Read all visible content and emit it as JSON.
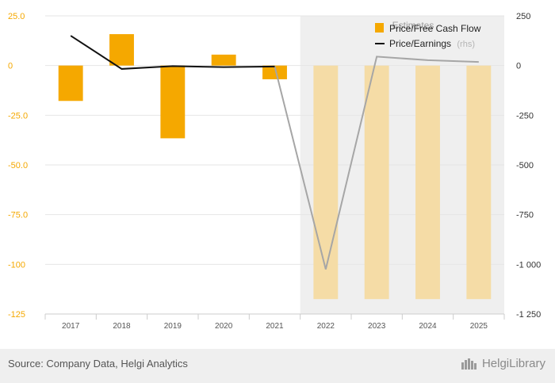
{
  "chart_data": {
    "type": "bar+line",
    "categories": [
      "2017",
      "2018",
      "2019",
      "2020",
      "2021",
      "2022",
      "2023",
      "2024",
      "2025"
    ],
    "estimates_start_index": 5,
    "estimates_label": "Estimates",
    "series": [
      {
        "name": "Price/Free Cash Flow",
        "type": "bar",
        "axis": "left",
        "color": "#f5a800",
        "estimate_color": "#f5dca6",
        "values": [
          -17.8,
          15.8,
          -36.6,
          5.5,
          -6.9,
          -117.5,
          -117.5,
          -117.5,
          -117.5
        ]
      },
      {
        "name": "Price/Earnings",
        "axis_note": "(rhs)",
        "type": "line",
        "axis": "right",
        "color": "#111111",
        "estimate_color": "#a6a6a6",
        "values": [
          150,
          -17,
          -3,
          -8,
          -5,
          -1025,
          45,
          27,
          18
        ]
      }
    ],
    "y_left": {
      "min": -125,
      "max": 25,
      "ticks": [
        25,
        0,
        -25,
        -50,
        -75,
        -100,
        -125
      ],
      "tick_labels": [
        "25.0",
        "0",
        "-25.0",
        "-50.0",
        "-75.0",
        "-100",
        "-125"
      ]
    },
    "y_right": {
      "min": -1250,
      "max": 250,
      "ticks": [
        250,
        0,
        -250,
        -500,
        -750,
        -1000,
        -1250
      ],
      "tick_labels": [
        "250",
        "0",
        "-250",
        "-500",
        "-750",
        "-1 000",
        "-1 250"
      ]
    },
    "grid": true,
    "legend_position": "top-right"
  },
  "footer": {
    "source": "Source: Company Data, Helgi Analytics",
    "brand": "HelgiLibrary"
  },
  "colors": {
    "estimate_band": "#efefef",
    "grid": "#e6e6e6",
    "axis": "#cccccc"
  }
}
